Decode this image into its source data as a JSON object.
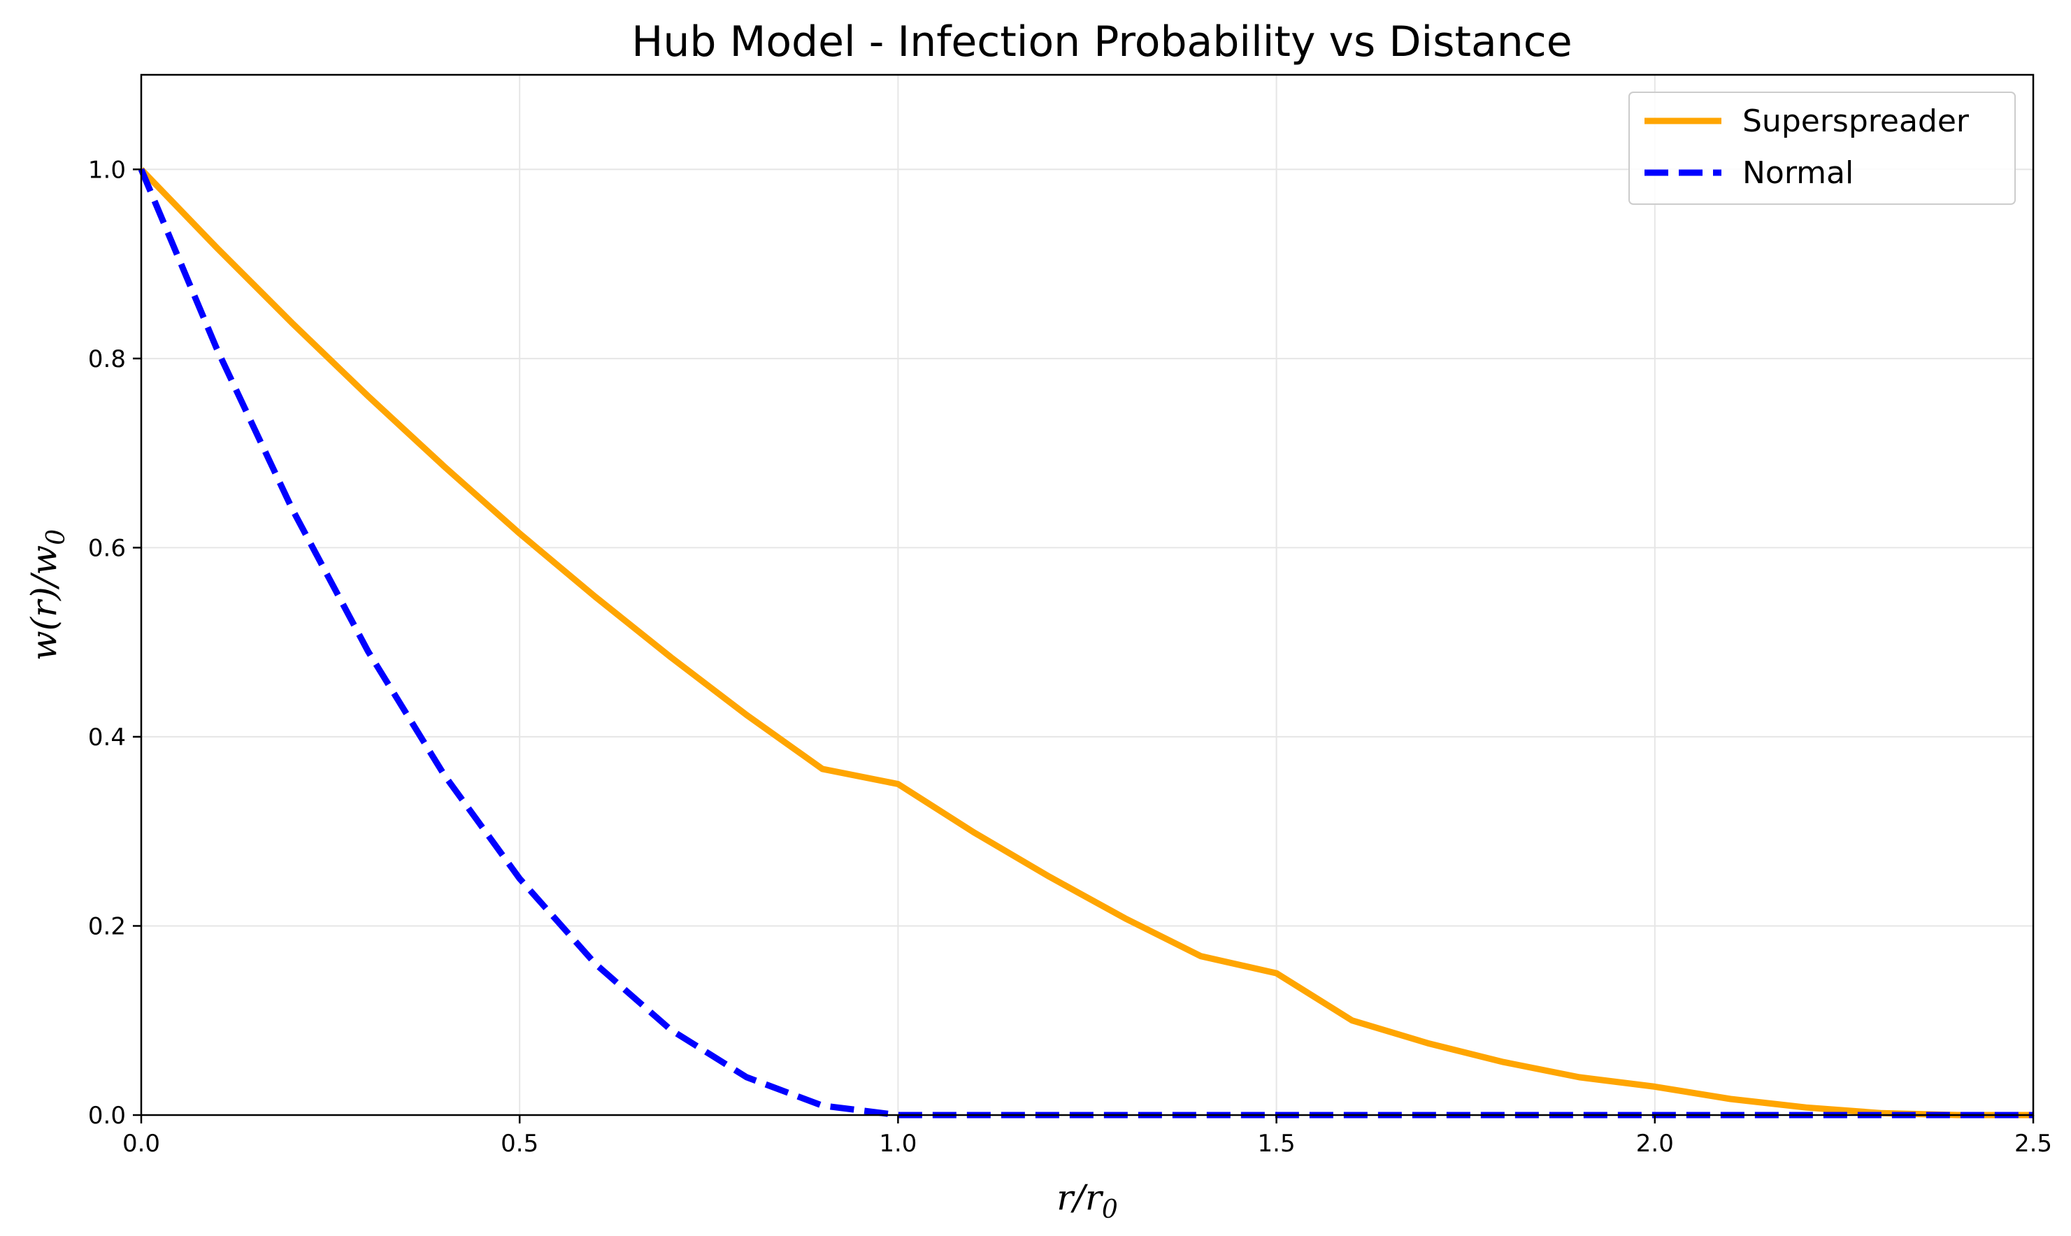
{
  "chart_data": {
    "type": "line",
    "title": "Hub Model - Infection Probability vs Distance",
    "xlabel": {
      "base": "r/r",
      "sub": "0"
    },
    "ylabel": {
      "base": "w(r)/w",
      "sub": "0"
    },
    "xlim": [
      0,
      2.5
    ],
    "ylim": [
      0,
      1.1
    ],
    "xticks": [
      0,
      0.5,
      1.0,
      1.5,
      2.0,
      2.5
    ],
    "xtick_labels": [
      "0.0",
      "0.5",
      "1.0",
      "1.5",
      "2.0",
      "2.5"
    ],
    "yticks": [
      0,
      0.2,
      0.4,
      0.6,
      0.8,
      1.0
    ],
    "ytick_labels": [
      "0.0",
      "0.2",
      "0.4",
      "0.6",
      "0.8",
      "1.0"
    ],
    "grid": true,
    "legend_position": "top-right",
    "x": [
      0,
      0.1,
      0.2,
      0.3,
      0.4,
      0.5,
      0.6,
      0.7,
      0.8,
      0.9,
      1.0,
      1.1,
      1.2,
      1.3,
      1.4,
      1.5,
      1.6,
      1.7,
      1.8,
      1.9,
      2.0,
      2.1,
      2.2,
      2.3,
      2.4,
      2.5
    ],
    "series": [
      {
        "name": "Superspreader",
        "color": "#ffa500",
        "style": "solid",
        "values": [
          1.0,
          0.917,
          0.837,
          0.76,
          0.686,
          0.615,
          0.548,
          0.484,
          0.423,
          0.366,
          0.35,
          0.299,
          0.252,
          0.208,
          0.168,
          0.15,
          0.1,
          0.076,
          0.056,
          0.04,
          0.03,
          0.017,
          0.008,
          0.002,
          0.0,
          0.0
        ]
      },
      {
        "name": "Normal",
        "color": "#0000ff",
        "style": "dashed",
        "values": [
          1.0,
          0.81,
          0.64,
          0.49,
          0.36,
          0.25,
          0.16,
          0.09,
          0.04,
          0.01,
          0.0,
          0.0,
          0.0,
          0.0,
          0.0,
          0.0,
          0.0,
          0.0,
          0.0,
          0.0,
          0.0,
          0.0,
          0.0,
          0.0,
          0.0,
          0.0
        ]
      }
    ]
  }
}
